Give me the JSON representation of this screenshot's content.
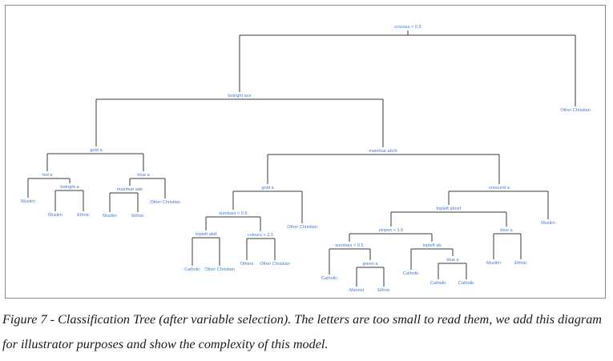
{
  "tree": {
    "nodes": [
      {
        "id": "n1",
        "text": "crosses < 0.5"
      },
      {
        "id": "n2",
        "text": "botright ace"
      },
      {
        "id": "n3",
        "text": "Other Christian"
      },
      {
        "id": "n4",
        "text": "gold a"
      },
      {
        "id": "n5",
        "text": "mainhue abch"
      },
      {
        "id": "n6",
        "text": "red a"
      },
      {
        "id": "n7",
        "text": "blue a"
      },
      {
        "id": "n8",
        "text": "Muslim"
      },
      {
        "id": "n9",
        "text": "botright a"
      },
      {
        "id": "n10",
        "text": "Muslim"
      },
      {
        "id": "n11",
        "text": "Ethnic"
      },
      {
        "id": "n12",
        "text": "mainhue ade"
      },
      {
        "id": "n13",
        "text": "Other Christian"
      },
      {
        "id": "n14",
        "text": "Muslim"
      },
      {
        "id": "n15",
        "text": "Ethnic"
      },
      {
        "id": "n16",
        "text": "gold a"
      },
      {
        "id": "n17",
        "text": "crescent a"
      },
      {
        "id": "n18",
        "text": "sunstars < 0.5"
      },
      {
        "id": "n19",
        "text": "Other Christian"
      },
      {
        "id": "n20",
        "text": "topleft abd"
      },
      {
        "id": "n21",
        "text": "colours < 2.5"
      },
      {
        "id": "n22",
        "text": "Catholic"
      },
      {
        "id": "n23",
        "text": "Other Christian"
      },
      {
        "id": "n24",
        "text": "Others"
      },
      {
        "id": "n25",
        "text": "Other Christian"
      },
      {
        "id": "n26",
        "text": "topleft abcef"
      },
      {
        "id": "n27",
        "text": "Muslim"
      },
      {
        "id": "n28",
        "text": "stripes < 1.5"
      },
      {
        "id": "n29",
        "text": "blue a"
      },
      {
        "id": "n30",
        "text": "sunstars < 0.5"
      },
      {
        "id": "n31",
        "text": "topleft ab"
      },
      {
        "id": "n32",
        "text": "Catholic"
      },
      {
        "id": "n33",
        "text": "green a"
      },
      {
        "id": "n34",
        "text": "Marxist"
      },
      {
        "id": "n35",
        "text": "Ethnic"
      },
      {
        "id": "n36",
        "text": "Catholic"
      },
      {
        "id": "n37",
        "text": "blue a"
      },
      {
        "id": "n38",
        "text": "Catholic"
      },
      {
        "id": "n39",
        "text": "Catholic"
      },
      {
        "id": "n40",
        "text": "Muslim"
      },
      {
        "id": "n41",
        "text": "Ethnic"
      }
    ],
    "edges": [
      [
        "n1",
        "n2"
      ],
      [
        "n1",
        "n3"
      ],
      [
        "n2",
        "n4"
      ],
      [
        "n2",
        "n5"
      ],
      [
        "n4",
        "n6"
      ],
      [
        "n4",
        "n7"
      ],
      [
        "n6",
        "n8"
      ],
      [
        "n6",
        "n9"
      ],
      [
        "n9",
        "n10"
      ],
      [
        "n9",
        "n11"
      ],
      [
        "n7",
        "n12"
      ],
      [
        "n7",
        "n13"
      ],
      [
        "n12",
        "n14"
      ],
      [
        "n12",
        "n15"
      ],
      [
        "n5",
        "n16"
      ],
      [
        "n5",
        "n17"
      ],
      [
        "n16",
        "n18"
      ],
      [
        "n16",
        "n19"
      ],
      [
        "n18",
        "n20"
      ],
      [
        "n18",
        "n21"
      ],
      [
        "n20",
        "n22"
      ],
      [
        "n20",
        "n23"
      ],
      [
        "n21",
        "n24"
      ],
      [
        "n21",
        "n25"
      ],
      [
        "n17",
        "n26"
      ],
      [
        "n17",
        "n27"
      ],
      [
        "n26",
        "n28"
      ],
      [
        "n26",
        "n29"
      ],
      [
        "n28",
        "n30"
      ],
      [
        "n28",
        "n31"
      ],
      [
        "n30",
        "n32"
      ],
      [
        "n30",
        "n33"
      ],
      [
        "n33",
        "n34"
      ],
      [
        "n33",
        "n35"
      ],
      [
        "n31",
        "n36"
      ],
      [
        "n31",
        "n37"
      ],
      [
        "n37",
        "n38"
      ],
      [
        "n37",
        "n39"
      ],
      [
        "n29",
        "n40"
      ],
      [
        "n29",
        "n41"
      ]
    ],
    "colors": {
      "label": "#3f7fcf",
      "edge": "#3a3a3a",
      "frame": "#8c8c8c"
    }
  },
  "caption": "Figure 7 - Classification Tree (after variable selection). The letters are too small to read them, we add this diagram for illustrator purposes and show the complexity of this model."
}
